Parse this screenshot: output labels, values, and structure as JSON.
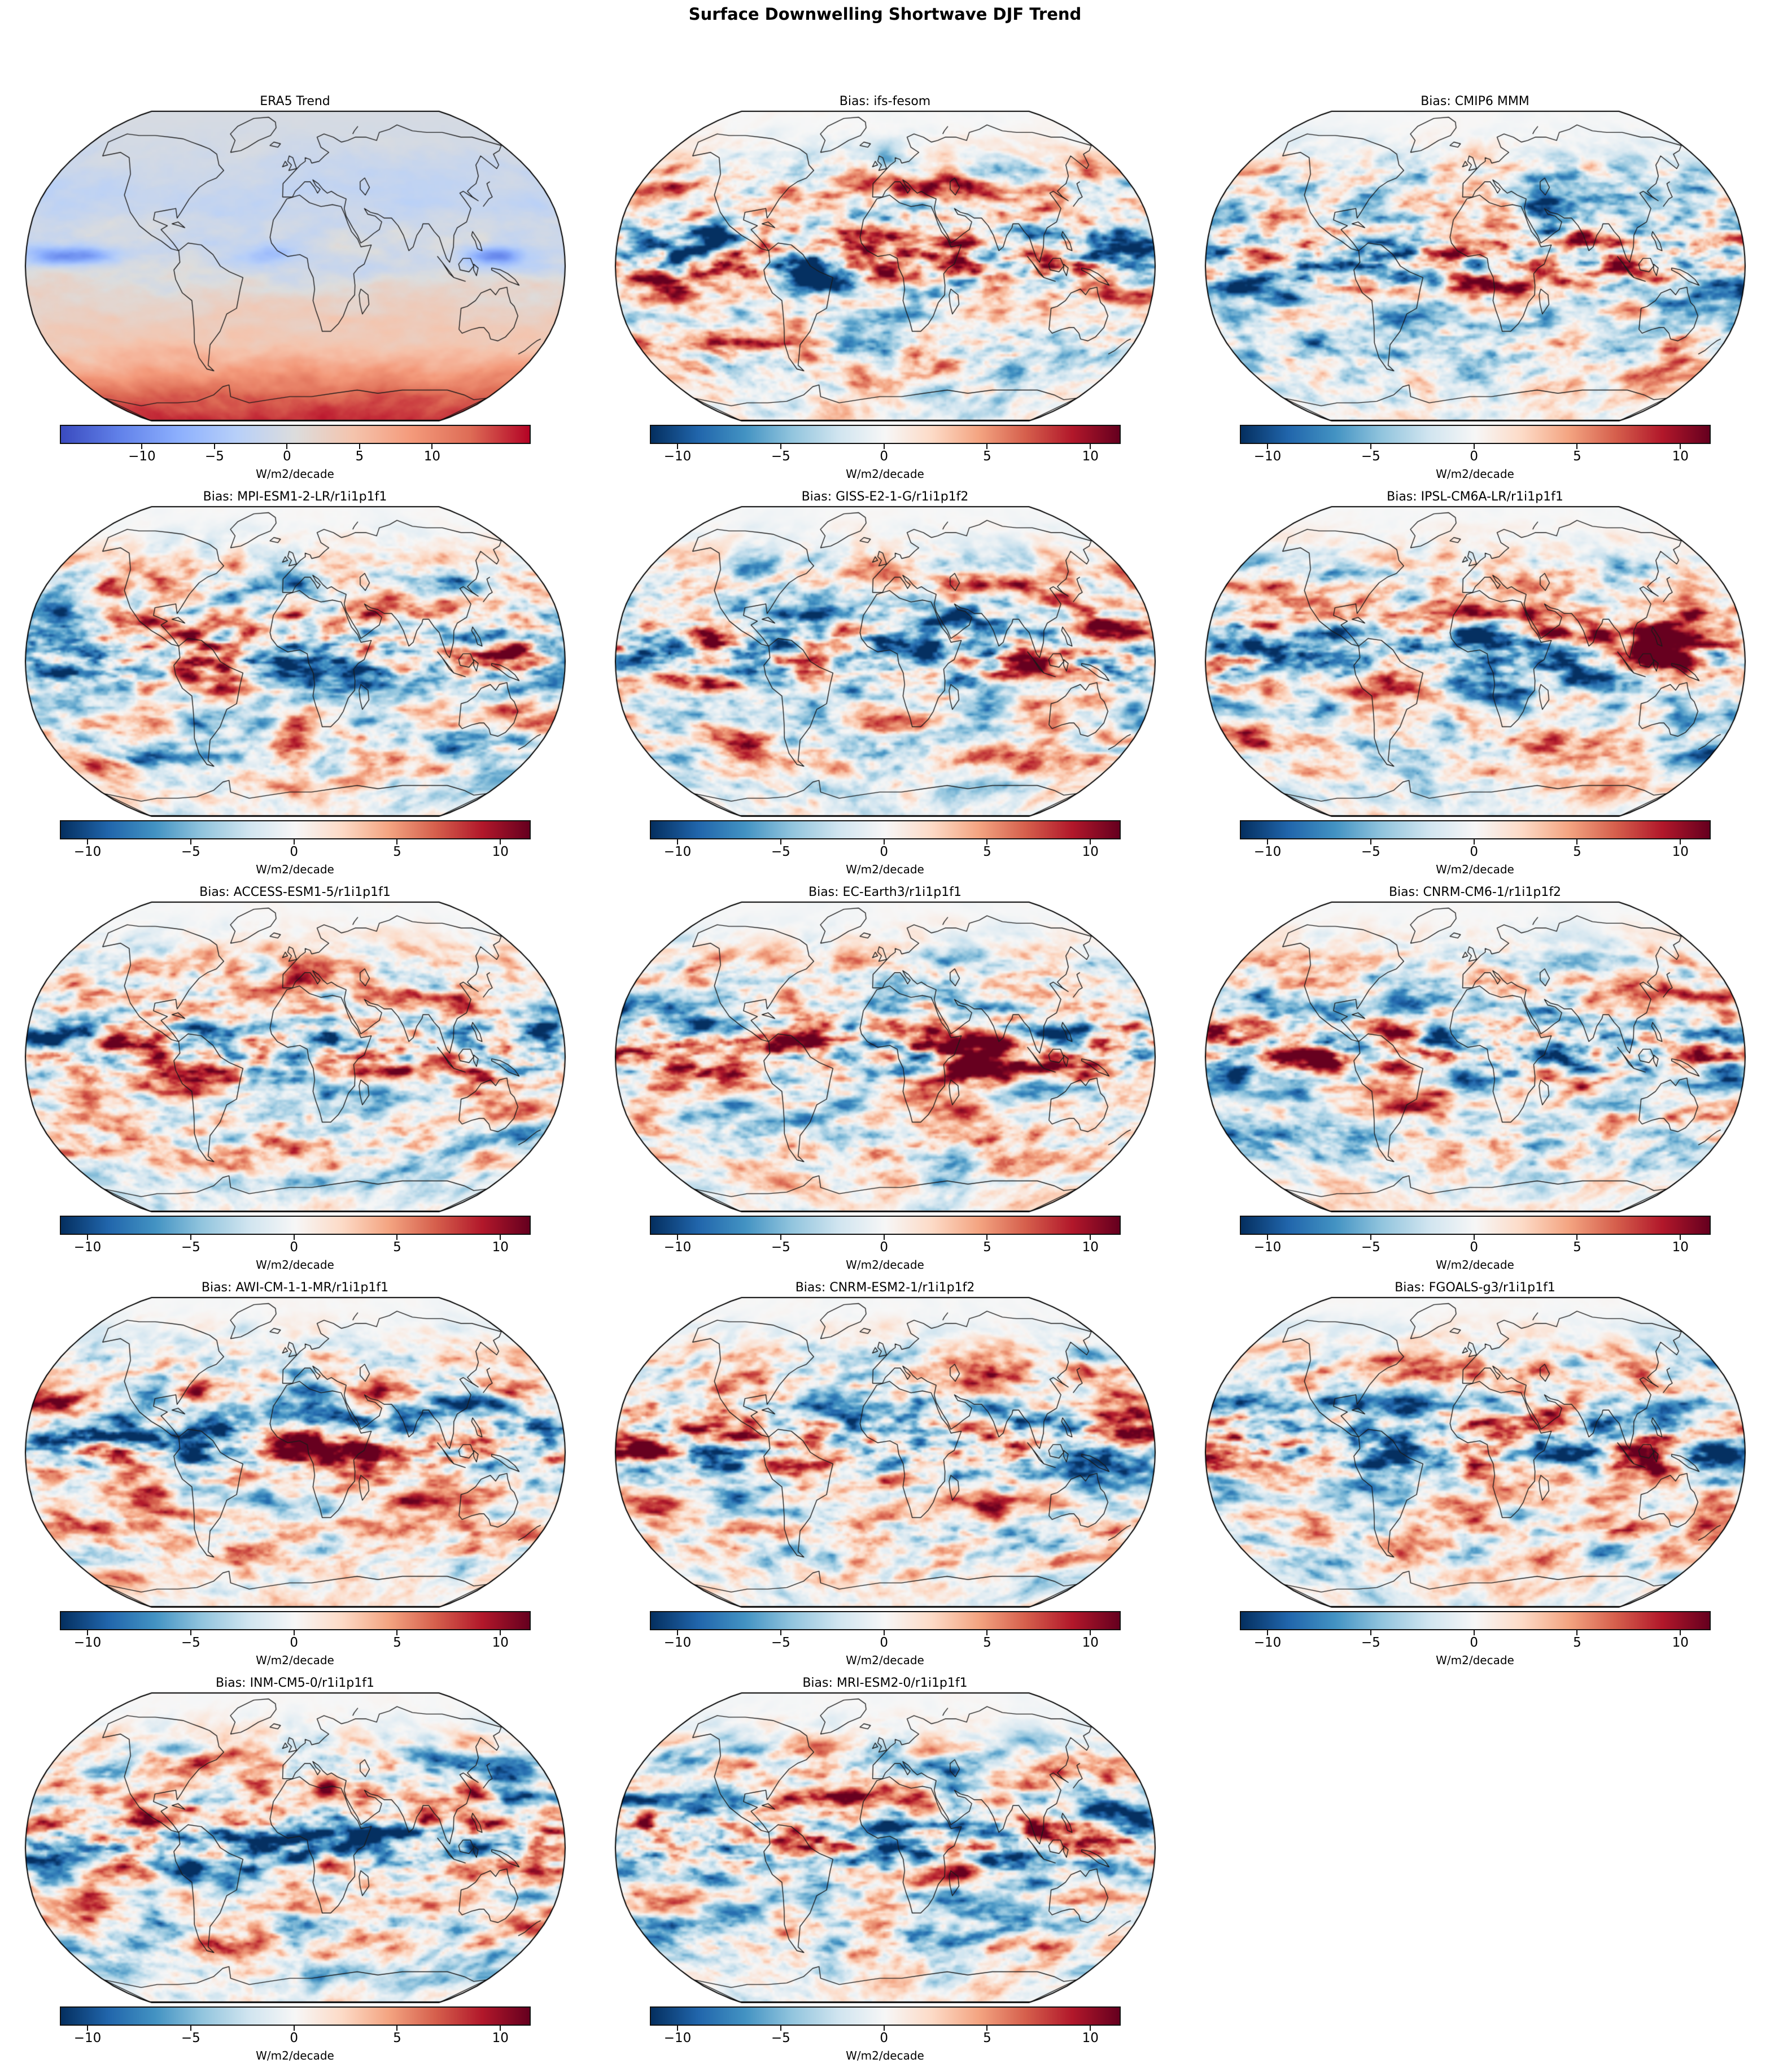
{
  "figure_title": "Surface Downwelling Shortwave DJF Trend",
  "unit_label": "W/m2/decade",
  "tick_labels": [
    "−10",
    "−5",
    "0",
    "5",
    "10"
  ],
  "panels": [
    {
      "title": "ERA5 Trend",
      "colormap": "coolwarm"
    },
    {
      "title": "Bias: ifs-fesom",
      "colormap": "RdBu_r"
    },
    {
      "title": "Bias: CMIP6 MMM",
      "colormap": "RdBu_r"
    },
    {
      "title": "Bias: MPI-ESM1-2-LR/r1i1p1f1",
      "colormap": "RdBu_r"
    },
    {
      "title": "Bias: GISS-E2-1-G/r1i1p1f2",
      "colormap": "RdBu_r"
    },
    {
      "title": "Bias: IPSL-CM6A-LR/r1i1p1f1",
      "colormap": "RdBu_r"
    },
    {
      "title": "Bias: ACCESS-ESM1-5/r1i1p1f1",
      "colormap": "RdBu_r"
    },
    {
      "title": "Bias: EC-Earth3/r1i1p1f1",
      "colormap": "RdBu_r"
    },
    {
      "title": "Bias: CNRM-CM6-1/r1i1p1f2",
      "colormap": "RdBu_r"
    },
    {
      "title": "Bias: AWI-CM-1-1-MR/r1i1p1f1",
      "colormap": "RdBu_r"
    },
    {
      "title": "Bias: CNRM-ESM2-1/r1i1p1f2",
      "colormap": "RdBu_r"
    },
    {
      "title": "Bias: FGOALS-g3/r1i1p1f1",
      "colormap": "RdBu_r"
    },
    {
      "title": "Bias: INM-CM5-0/r1i1p1f1",
      "colormap": "RdBu_r"
    },
    {
      "title": "Bias: MRI-ESM2-0/r1i1p1f1",
      "colormap": "RdBu_r"
    }
  ],
  "chart_data": {
    "type": "heatmap",
    "subtype": "global-map-small-multiples",
    "projection": "Robinson",
    "title": "Surface Downwelling Shortwave DJF Trend",
    "grid": {
      "rows": 5,
      "cols": 3,
      "empty_cells": [
        "row5-col3"
      ]
    },
    "panel_titles": [
      "ERA5 Trend",
      "Bias: ifs-fesom",
      "Bias: CMIP6 MMM",
      "Bias: MPI-ESM1-2-LR/r1i1p1f1",
      "Bias: GISS-E2-1-G/r1i1p1f2",
      "Bias: IPSL-CM6A-LR/r1i1p1f1",
      "Bias: ACCESS-ESM1-5/r1i1p1f1",
      "Bias: EC-Earth3/r1i1p1f1",
      "Bias: CNRM-CM6-1/r1i1p1f2",
      "Bias: AWI-CM-1-1-MR/r1i1p1f1",
      "Bias: CNRM-ESM2-1/r1i1p1f2",
      "Bias: FGOALS-g3/r1i1p1f1",
      "Bias: INM-CM5-0/r1i1p1f1",
      "Bias: MRI-ESM2-0/r1i1p1f1"
    ],
    "colorbar": {
      "orientation": "horizontal",
      "ticks": [
        -10,
        -5,
        0,
        5,
        10
      ],
      "unit": "W/m2/decade",
      "era5_colormap": "coolwarm",
      "era5_value_range": [
        -15.6,
        16.7
      ],
      "bias_colormap": "RdBu_r",
      "bias_value_range": [
        -11.3,
        11.4
      ]
    },
    "colors": {
      "bias_negative_extreme": "#053061",
      "bias_zero": "#f7f7f7",
      "bias_positive_extreme": "#67001f",
      "era5_negative_extreme": "#3b4cc0",
      "era5_zero": "#dddcdc",
      "era5_positive_extreme": "#b40426",
      "coastline": "#1a1a1a"
    },
    "notes": "ERA5 DJF trend: near-zero grey over polar night latitudes, weak negative (blue) NH, strong negative band along ~5N equatorial Pacific and Maritime Continent, increasingly positive (red) southern hemisphere with strong positive band around Antarctica. Bias panels: zonally elongated red/blue anomaly bands, strongest (saturated dark red) along the equatorial Pacific and Maritime Continent, near-white at high northern latitudes."
  }
}
